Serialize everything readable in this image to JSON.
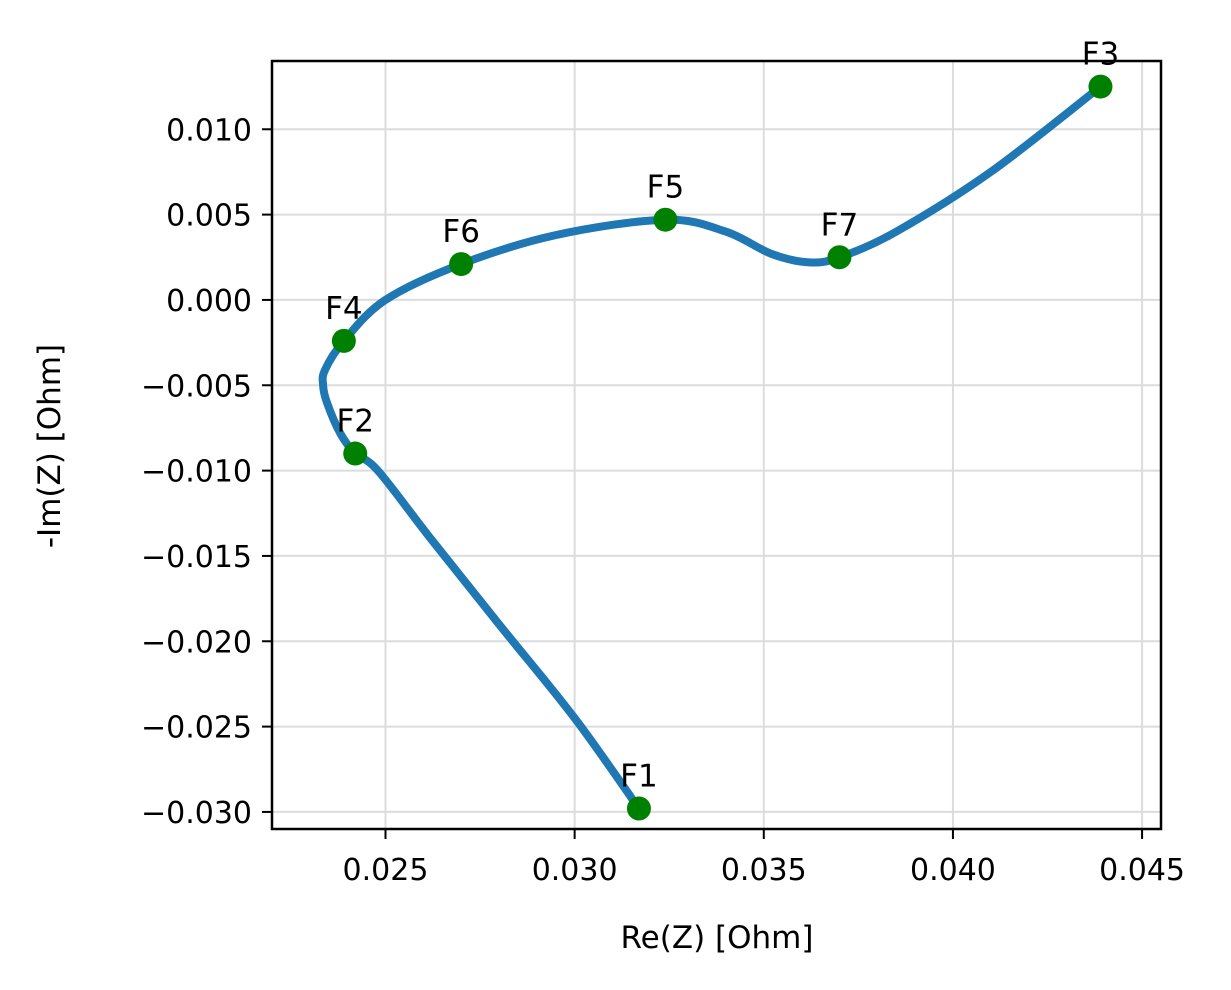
{
  "chart_data": {
    "type": "line",
    "title": "",
    "xlabel": "Re(Z) [Ohm]",
    "ylabel": "-Im(Z) [Ohm]",
    "xlim": [
      0.022,
      0.0455
    ],
    "ylim": [
      -0.031,
      0.014
    ],
    "grid": true,
    "x_ticks": [
      {
        "value": 0.025,
        "label": "0.025"
      },
      {
        "value": 0.03,
        "label": "0.030"
      },
      {
        "value": 0.035,
        "label": "0.035"
      },
      {
        "value": 0.04,
        "label": "0.040"
      },
      {
        "value": 0.045,
        "label": "0.045"
      }
    ],
    "y_ticks": [
      {
        "value": 0.01,
        "label": "0.010"
      },
      {
        "value": 0.005,
        "label": "0.005"
      },
      {
        "value": 0.0,
        "label": "0.000"
      },
      {
        "value": -0.005,
        "label": "−0.005"
      },
      {
        "value": -0.01,
        "label": "−0.010"
      },
      {
        "value": -0.015,
        "label": "−0.015"
      },
      {
        "value": -0.02,
        "label": "−0.020"
      },
      {
        "value": -0.025,
        "label": "−0.025"
      },
      {
        "value": -0.03,
        "label": "−0.030"
      }
    ],
    "series": [
      {
        "color": "#1f77b4",
        "x": [
          0.0317,
          0.03,
          0.028,
          0.0262,
          0.0248,
          0.0242,
          0.0238,
          0.02345,
          0.02335,
          0.0234,
          0.0239,
          0.025,
          0.027,
          0.0295,
          0.0324,
          0.034,
          0.0352,
          0.0362,
          0.037,
          0.0385,
          0.041,
          0.0439
        ],
        "y": [
          -0.0298,
          -0.0245,
          -0.019,
          -0.014,
          -0.01,
          -0.009,
          -0.0078,
          -0.006,
          -0.005,
          -0.0041,
          -0.0024,
          0.0,
          0.0021,
          0.0038,
          0.0047,
          0.004,
          0.0027,
          0.0022,
          0.0025,
          0.004,
          0.0075,
          0.0125
        ]
      }
    ],
    "points": {
      "color": "#008000",
      "items": [
        {
          "label": "F1",
          "x": 0.0317,
          "y": -0.0298
        },
        {
          "label": "F2",
          "x": 0.0242,
          "y": -0.009
        },
        {
          "label": "F3",
          "x": 0.0439,
          "y": 0.0125
        },
        {
          "label": "F4",
          "x": 0.0239,
          "y": -0.0024
        },
        {
          "label": "F5",
          "x": 0.0324,
          "y": 0.0047
        },
        {
          "label": "F6",
          "x": 0.027,
          "y": 0.0021
        },
        {
          "label": "F7",
          "x": 0.037,
          "y": 0.0025
        }
      ]
    }
  }
}
